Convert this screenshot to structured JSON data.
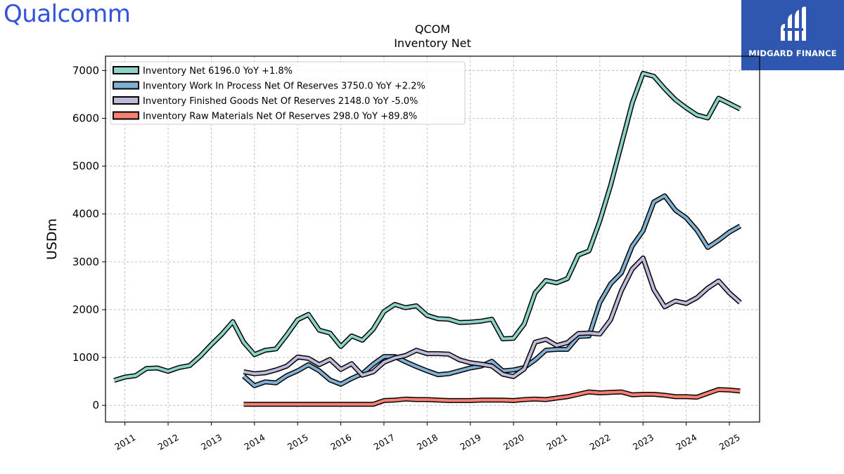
{
  "branding": {
    "company_logo_text": "Qualcomm",
    "badge_text": "MIDGARD FINANCE",
    "colors": {
      "qualcomm_blue": "#3253DC",
      "badge_blue": "#2F57B0"
    }
  },
  "chart_data": {
    "type": "line",
    "title": "QCOM",
    "subtitle": "Inventory Net",
    "ylabel": "USDm",
    "xlabel": "",
    "ylim": [
      -350,
      7300
    ],
    "xlim": [
      2010.55,
      2025.7
    ],
    "yticks": [
      0,
      1000,
      2000,
      3000,
      4000,
      5000,
      6000,
      7000
    ],
    "xticks": [
      "2011",
      "2012",
      "2013",
      "2014",
      "2015",
      "2016",
      "2017",
      "2018",
      "2019",
      "2020",
      "2021",
      "2022",
      "2023",
      "2024",
      "2025"
    ],
    "grid": true,
    "legend_position": "top-left",
    "series": [
      {
        "name": "Inventory Net  6196.0 YoY +1.8%",
        "color": "#8DD3C7",
        "x": [
          2010.75,
          2011.0,
          2011.25,
          2011.5,
          2011.75,
          2012.0,
          2012.25,
          2012.5,
          2012.75,
          2013.0,
          2013.25,
          2013.5,
          2013.75,
          2014.0,
          2014.25,
          2014.5,
          2014.75,
          2015.0,
          2015.25,
          2015.5,
          2015.75,
          2016.0,
          2016.25,
          2016.5,
          2016.75,
          2017.0,
          2017.25,
          2017.5,
          2017.75,
          2018.0,
          2018.25,
          2018.5,
          2018.75,
          2019.0,
          2019.25,
          2019.5,
          2019.75,
          2020.0,
          2020.25,
          2020.5,
          2020.75,
          2021.0,
          2021.25,
          2021.5,
          2021.75,
          2022.0,
          2022.25,
          2022.5,
          2022.75,
          2023.0,
          2023.25,
          2023.5,
          2023.75,
          2024.0,
          2024.25,
          2024.5,
          2024.75,
          2025.0,
          2025.25
        ],
        "values": [
          520,
          590,
          620,
          770,
          780,
          710,
          790,
          830,
          1030,
          1270,
          1490,
          1750,
          1320,
          1060,
          1150,
          1180,
          1470,
          1790,
          1900,
          1570,
          1510,
          1230,
          1450,
          1360,
          1590,
          1960,
          2110,
          2040,
          2080,
          1880,
          1810,
          1800,
          1730,
          1740,
          1760,
          1800,
          1390,
          1400,
          1700,
          2350,
          2610,
          2560,
          2650,
          3140,
          3230,
          3860,
          4600,
          5460,
          6320,
          6940,
          6880,
          6620,
          6390,
          6220,
          6070,
          6010,
          6420,
          6310,
          6196
        ]
      },
      {
        "name": "Inventory Work In Process Net Of Reserves  3750.0 YoY +2.2%",
        "color": "#80B1D3",
        "x": [
          2013.75,
          2014.0,
          2014.25,
          2014.5,
          2014.75,
          2015.0,
          2015.25,
          2015.5,
          2015.75,
          2016.0,
          2016.25,
          2016.5,
          2016.75,
          2017.0,
          2017.25,
          2017.5,
          2017.75,
          2018.0,
          2018.25,
          2018.5,
          2018.75,
          2019.0,
          2019.25,
          2019.5,
          2019.75,
          2020.0,
          2020.25,
          2020.5,
          2020.75,
          2021.0,
          2021.25,
          2021.5,
          2021.75,
          2022.0,
          2022.25,
          2022.5,
          2022.75,
          2023.0,
          2023.25,
          2023.5,
          2023.75,
          2024.0,
          2024.25,
          2024.5,
          2024.75,
          2025.0,
          2025.25
        ],
        "values": [
          610,
          410,
          490,
          470,
          620,
          720,
          850,
          720,
          530,
          440,
          560,
          660,
          860,
          1020,
          1020,
          910,
          810,
          720,
          640,
          660,
          720,
          780,
          820,
          920,
          720,
          740,
          790,
          950,
          1150,
          1170,
          1170,
          1440,
          1450,
          2150,
          2540,
          2770,
          3330,
          3650,
          4250,
          4380,
          4080,
          3920,
          3660,
          3300,
          3450,
          3620,
          3750
        ]
      },
      {
        "name": "Inventory Finished Goods Net Of Reserves  2148.0 YoY -5.0%",
        "color": "#BEBADA",
        "x": [
          2013.75,
          2014.0,
          2014.25,
          2014.5,
          2014.75,
          2015.0,
          2015.25,
          2015.5,
          2015.75,
          2016.0,
          2016.25,
          2016.5,
          2016.75,
          2017.0,
          2017.25,
          2017.5,
          2017.75,
          2018.0,
          2018.25,
          2018.5,
          2018.75,
          2019.0,
          2019.25,
          2019.5,
          2019.75,
          2020.0,
          2020.25,
          2020.5,
          2020.75,
          2021.0,
          2021.25,
          2021.5,
          2021.75,
          2022.0,
          2022.25,
          2022.5,
          2022.75,
          2023.0,
          2023.25,
          2023.5,
          2023.75,
          2024.0,
          2024.25,
          2024.5,
          2024.75,
          2025.0,
          2025.25
        ],
        "values": [
          700,
          660,
          680,
          740,
          820,
          1010,
          980,
          850,
          960,
          750,
          870,
          630,
          700,
          900,
          990,
          1040,
          1150,
          1080,
          1080,
          1070,
          950,
          890,
          860,
          820,
          650,
          600,
          760,
          1320,
          1380,
          1250,
          1310,
          1500,
          1510,
          1490,
          1790,
          2400,
          2850,
          3080,
          2420,
          2060,
          2180,
          2130,
          2250,
          2450,
          2600,
          2350,
          2148
        ]
      },
      {
        "name": "Inventory Raw Materials Net Of Reserves  298.0 YoY +89.8%",
        "color": "#FB8072",
        "x": [
          2013.75,
          2014.0,
          2014.25,
          2014.5,
          2014.75,
          2015.0,
          2015.25,
          2015.5,
          2015.75,
          2016.0,
          2016.25,
          2016.5,
          2016.75,
          2017.0,
          2017.25,
          2017.5,
          2017.75,
          2018.0,
          2018.25,
          2018.5,
          2018.75,
          2019.0,
          2019.25,
          2019.5,
          2019.75,
          2020.0,
          2020.25,
          2020.5,
          2020.75,
          2021.0,
          2021.25,
          2021.5,
          2021.75,
          2022.0,
          2022.25,
          2022.5,
          2022.75,
          2023.0,
          2023.25,
          2023.5,
          2023.75,
          2024.0,
          2024.25,
          2024.5,
          2024.75,
          2025.0,
          2025.25
        ],
        "values": [
          20,
          20,
          20,
          20,
          20,
          20,
          20,
          20,
          20,
          20,
          20,
          20,
          20,
          100,
          110,
          130,
          120,
          120,
          110,
          100,
          100,
          100,
          110,
          110,
          110,
          100,
          120,
          130,
          120,
          150,
          180,
          230,
          280,
          260,
          270,
          280,
          220,
          230,
          230,
          210,
          180,
          180,
          170,
          250,
          330,
          320,
          298
        ]
      }
    ]
  }
}
